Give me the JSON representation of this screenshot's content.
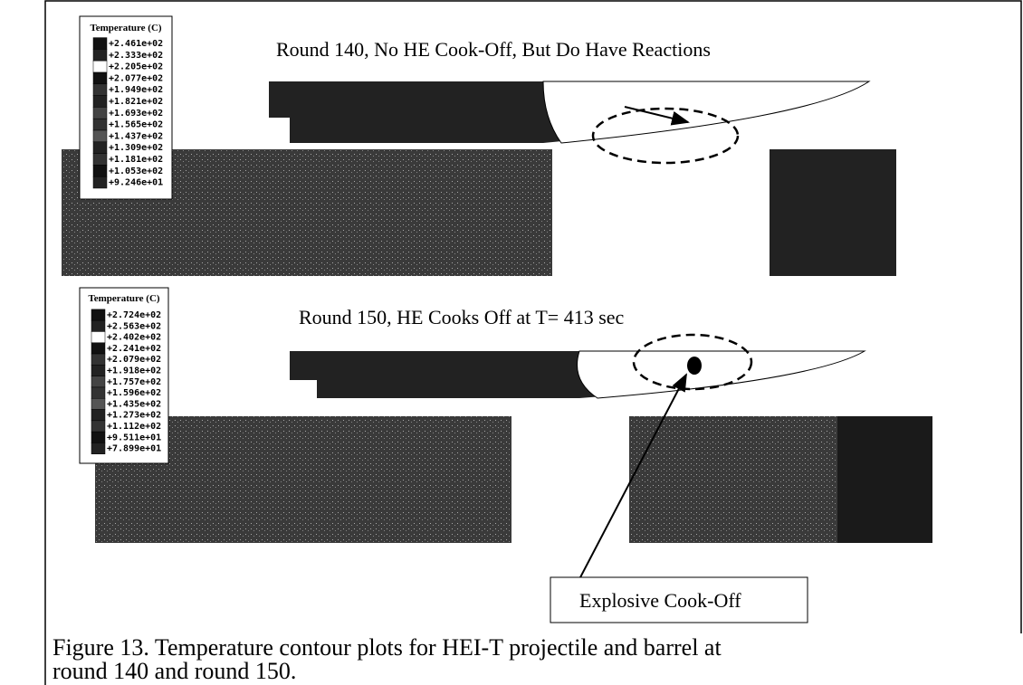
{
  "figure": {
    "panels": [
      {
        "legend_title": "Temperature (C)",
        "legend_values": [
          "+2.461e+02",
          "+2.333e+02",
          "+2.205e+02",
          "+2.077e+02",
          "+1.949e+02",
          "+1.821e+02",
          "+1.693e+02",
          "+1.565e+02",
          "+1.437e+02",
          "+1.309e+02",
          "+1.181e+02",
          "+1.053e+02",
          "+9.246e+01"
        ],
        "annotation": "Round 140, No HE Cook-Off,  But Do Have Reactions"
      },
      {
        "legend_title": "Temperature (C)",
        "legend_values": [
          "+2.724e+02",
          "+2.563e+02",
          "+2.402e+02",
          "+2.241e+02",
          "+2.079e+02",
          "+1.918e+02",
          "+1.757e+02",
          "+1.596e+02",
          "+1.435e+02",
          "+1.273e+02",
          "+1.112e+02",
          "+9.511e+01",
          "+7.899e+01"
        ],
        "annotation": "Round 150, HE Cooks Off at T= 413 sec",
        "callout": "Explosive Cook-Off"
      }
    ],
    "caption": [
      "Figure 13.   Temperature contour plots for HEI-T projectile and barrel at",
      "round 140 and round 150."
    ]
  }
}
